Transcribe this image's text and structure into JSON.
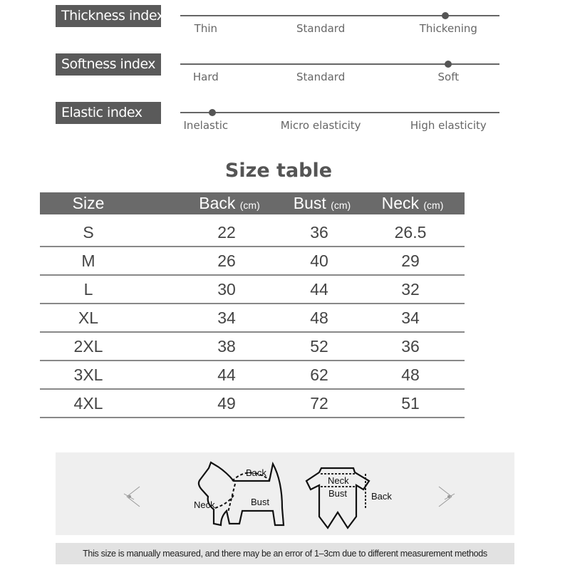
{
  "indices": [
    {
      "title": "Thickness index",
      "labels": [
        "Thin",
        "Standard",
        "Thickening"
      ],
      "level": 0.83
    },
    {
      "title": "Softness index",
      "labels": [
        "Hard",
        "Standard",
        "Soft"
      ],
      "level": 0.84
    },
    {
      "title": "Elastic index",
      "labels": [
        "Inelastic",
        "Micro elasticity",
        "High elasticity"
      ],
      "level": 0.1
    }
  ],
  "size_table": {
    "title": "Size table",
    "headers": [
      {
        "label": "Size",
        "unit": ""
      },
      {
        "label": "Back",
        "unit": "(cm)"
      },
      {
        "label": "Bust",
        "unit": "(cm)"
      },
      {
        "label": "Neck",
        "unit": "(cm)"
      }
    ],
    "rows": [
      [
        "S",
        "22",
        "36",
        "26.5"
      ],
      [
        "M",
        "26",
        "40",
        "29"
      ],
      [
        "L",
        "30",
        "44",
        "32"
      ],
      [
        "XL",
        "34",
        "48",
        "34"
      ],
      [
        "2XL",
        "38",
        "52",
        "36"
      ],
      [
        "3XL",
        "44",
        "62",
        "48"
      ],
      [
        "4XL",
        "49",
        "72",
        "51"
      ]
    ]
  },
  "illustration": {
    "dog_labels": {
      "back": "Back",
      "neck": "Neck",
      "bust": "Bust"
    },
    "garment_labels": {
      "neck": "Neck",
      "bust": "Bust",
      "back": "Back"
    }
  },
  "note": "This size is manually measured, and there may be an error of 1–3cm due to different measurement methods"
}
